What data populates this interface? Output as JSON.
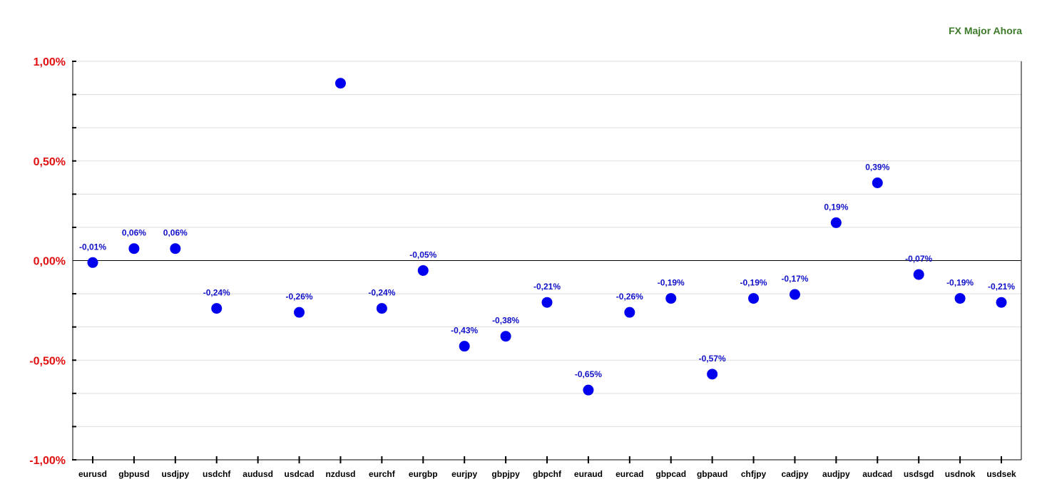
{
  "chart_data": {
    "type": "scatter",
    "title": "FX Major Ahora",
    "xlabel": "",
    "ylabel": "",
    "categories": [
      "eurusd",
      "gbpusd",
      "usdjpy",
      "usdchf",
      "audusd",
      "usdcad",
      "nzdusd",
      "eurchf",
      "eurgbp",
      "eurjpy",
      "gbpjpy",
      "gbpchf",
      "euraud",
      "eurcad",
      "gbpcad",
      "gbpaud",
      "chfjpy",
      "cadjpy",
      "audjpy",
      "audcad",
      "usdsgd",
      "usdnok",
      "usdsek"
    ],
    "values": [
      -0.01,
      0.06,
      0.06,
      -0.24,
      null,
      -0.26,
      0.89,
      -0.24,
      -0.05,
      -0.43,
      -0.38,
      -0.21,
      -0.65,
      -0.26,
      -0.19,
      -0.57,
      -0.19,
      -0.17,
      0.19,
      0.39,
      -0.07,
      -0.19,
      -0.21
    ],
    "labels": [
      "-0,01%",
      "0,06%",
      "0,06%",
      "-0,24%",
      "",
      "-0,26%",
      "",
      "-0,24%",
      "-0,05%",
      "-0,43%",
      "-0,38%",
      "-0,21%",
      "-0,65%",
      "-0,26%",
      "-0,19%",
      "-0,57%",
      "-0,19%",
      "-0,17%",
      "0,19%",
      "0,39%",
      "-0,07%",
      "-0,19%",
      "-0,21%"
    ],
    "ylim": [
      -1.0,
      1.0
    ],
    "yticks": [
      1.0,
      0.5,
      0.0,
      -0.5,
      -1.0
    ],
    "ytick_labels": [
      "1,00%",
      "0,50%",
      "0,00%",
      "-0,50%",
      "-1,00%"
    ],
    "grid": true,
    "colors": {
      "point": "#0000ee",
      "data_label": "#1010c8",
      "y_tick": "#e01010",
      "title": "#3d7a2a",
      "grid": "#dddddd"
    }
  }
}
